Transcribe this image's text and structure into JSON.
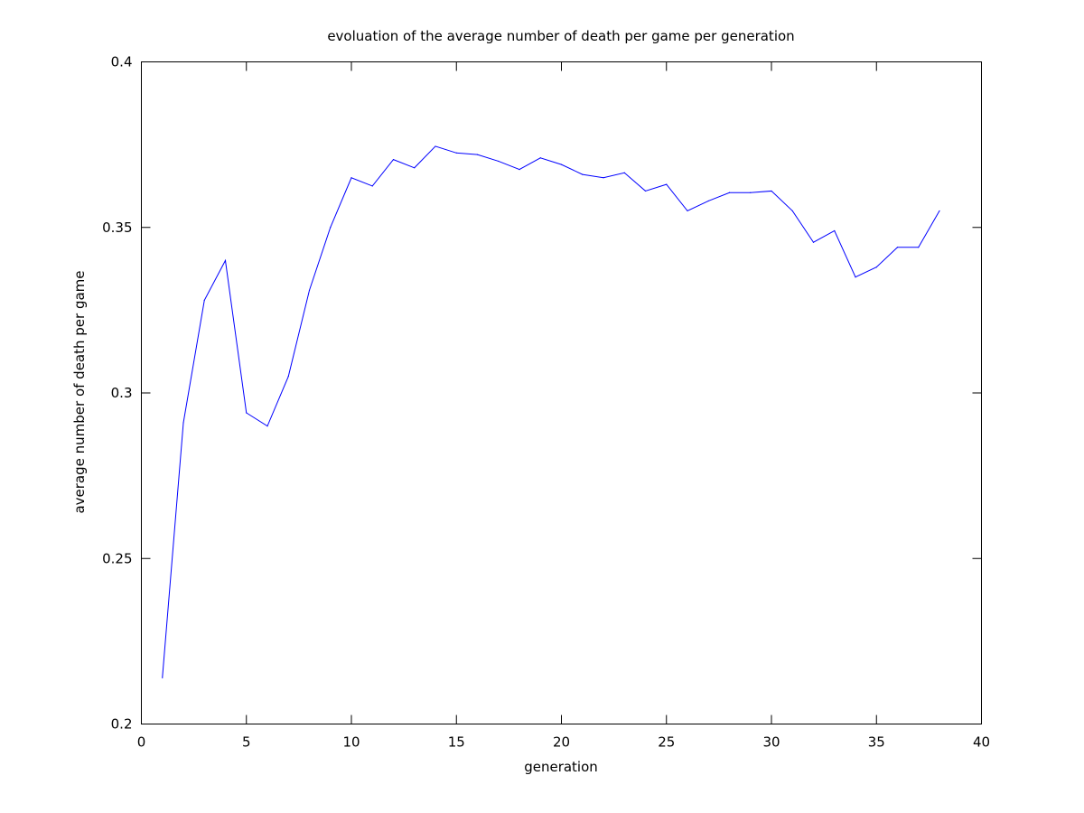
{
  "chart_data": {
    "type": "line",
    "title": "evoluation of the average number of death per game per generation",
    "xlabel": "generation",
    "ylabel": "average number of death per game",
    "xlim": [
      0,
      40
    ],
    "ylim": [
      0.2,
      0.4
    ],
    "x_ticks": [
      0,
      5,
      10,
      15,
      20,
      25,
      30,
      35,
      40
    ],
    "y_ticks": [
      0.2,
      0.25,
      0.3,
      0.35,
      0.4
    ],
    "x_tick_labels": [
      "0",
      "5",
      "10",
      "15",
      "20",
      "25",
      "30",
      "35",
      "40"
    ],
    "y_tick_labels": [
      "0.2",
      "0.25",
      "0.3",
      "0.35",
      "0.4"
    ],
    "grid": false,
    "legend": "none",
    "series": [
      {
        "color": "#0000ff",
        "x": [
          1,
          2,
          3,
          4,
          5,
          6,
          7,
          8,
          9,
          10,
          11,
          12,
          13,
          14,
          15,
          16,
          17,
          18,
          19,
          20,
          21,
          22,
          23,
          24,
          25,
          26,
          27,
          28,
          29,
          30,
          31,
          32,
          33,
          34,
          35,
          36,
          37,
          38
        ],
        "y": [
          0.214,
          0.291,
          0.328,
          0.34,
          0.294,
          0.29,
          0.305,
          0.331,
          0.35,
          0.365,
          0.3625,
          0.3705,
          0.368,
          0.3745,
          0.3725,
          0.372,
          0.37,
          0.3675,
          0.371,
          0.369,
          0.366,
          0.365,
          0.3665,
          0.361,
          0.363,
          0.355,
          0.358,
          0.3605,
          0.3605,
          0.361,
          0.355,
          0.3455,
          0.349,
          0.335,
          0.338,
          0.344,
          0.344,
          0.355
        ]
      }
    ]
  }
}
